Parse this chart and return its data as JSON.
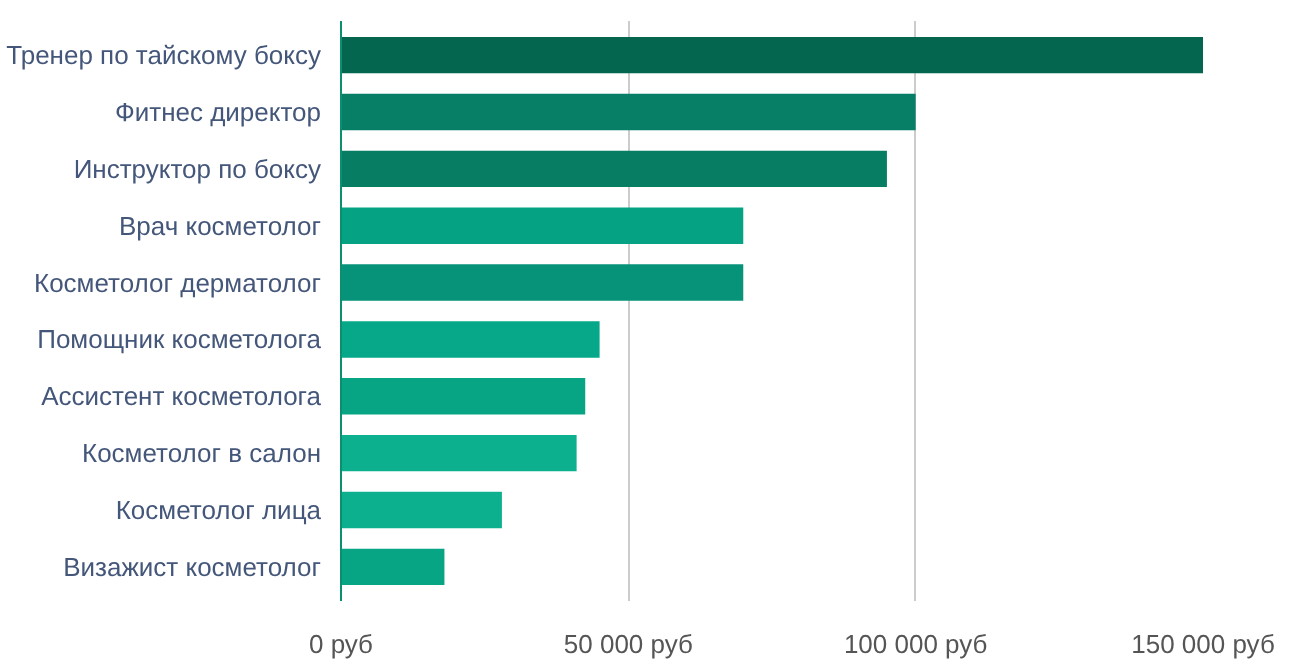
{
  "chart_data": {
    "type": "bar",
    "orientation": "horizontal",
    "categories": [
      "Тренер по тайскому боксу",
      "Фитнес директор",
      "Инструктор по боксу",
      "Врач косметолог",
      "Косметолог дерматолог",
      "Помощник косметолога",
      "Ассистент косметолога",
      "Косметолог в салон",
      "Косметолог лица",
      "Визажист косметолог"
    ],
    "values": [
      150000,
      100000,
      95000,
      70000,
      70000,
      45000,
      42500,
      41000,
      28000,
      18000
    ],
    "colors": [
      "#05664f",
      "#067f66",
      "#077e63",
      "#05a383",
      "#06937a",
      "#07a88a",
      "#07a584",
      "#0cb08f",
      "#0cb08f",
      "#08a585"
    ],
    "xlim": [
      0,
      150000
    ],
    "xticks": [
      {
        "value": 0,
        "label": "0 руб"
      },
      {
        "value": 50000,
        "label": "50 000 руб"
      },
      {
        "value": 100000,
        "label": "100 000 руб"
      },
      {
        "value": 150000,
        "label": "150 000 руб"
      }
    ],
    "grid": "x"
  }
}
